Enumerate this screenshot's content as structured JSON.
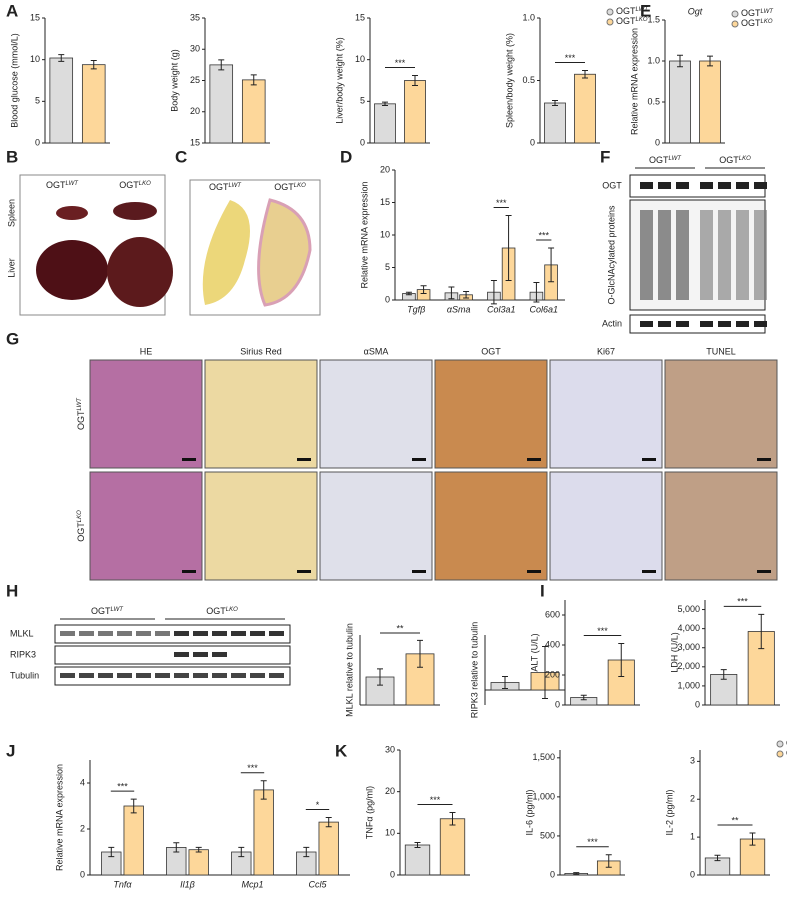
{
  "letters": [
    "A",
    "E",
    "B",
    "C",
    "D",
    "F",
    "G",
    "H",
    "I",
    "J",
    "K"
  ],
  "groups": [
    {
      "base": "OGT",
      "sup": "LWT",
      "color": "#dcdcdc"
    },
    {
      "base": "OGT",
      "sup": "LKO",
      "color": "#fdd79a"
    }
  ],
  "images": {
    "B": [
      "Spleen",
      "Liver"
    ],
    "F": [
      "OGT",
      "O-GlcNAcylated proteins",
      "Actin"
    ],
    "G": [
      "HE",
      "Sirius Red",
      "αSMA",
      "OGT",
      "Ki67",
      "TUNEL"
    ],
    "H": [
      "MLKL",
      "RIPK3",
      "Tubulin"
    ]
  },
  "charts": [
    {
      "ylabel": "Blood glucose (mmol/L)",
      "ylim": [
        0,
        15
      ],
      "yticks": [
        0,
        5,
        10,
        15
      ],
      "values": [
        10.2,
        9.4
      ],
      "errors": [
        0.4,
        0.5
      ]
    },
    {
      "ylabel": "Body weight (g)",
      "ylim": [
        15,
        35
      ],
      "yticks": [
        15,
        20,
        25,
        30,
        35
      ],
      "values": [
        27.5,
        25.1
      ],
      "errors": [
        0.8,
        0.8
      ]
    },
    {
      "ylabel": "Liver/body weight (%)",
      "ylim": [
        0,
        15
      ],
      "yticks": [
        0,
        5,
        10,
        15
      ],
      "values": [
        4.7,
        7.5
      ],
      "errors": [
        0.2,
        0.6
      ],
      "sig": "***"
    },
    {
      "ylabel": "Spleen/body weight (%)",
      "ylim": [
        0,
        1
      ],
      "yticks": [
        0,
        0.5,
        {
          "value": 1,
          "label": "1.0"
        }
      ],
      "values": [
        0.32,
        0.55
      ],
      "errors": [
        0.02,
        0.03
      ],
      "sig": "***",
      "legend": true
    },
    {
      "title": "Ogt",
      "ylabel": "Relative mRNA expression",
      "ylim": [
        0,
        1.5
      ],
      "yticks": [
        0,
        0.5,
        {
          "value": 1,
          "label": "1.0"
        },
        1.5
      ],
      "values": [
        1.0,
        1.0
      ],
      "errors": [
        0.07,
        0.06
      ],
      "legend": true
    },
    {
      "ylabel": "Relative mRNA expression",
      "ylim": [
        0,
        20
      ],
      "yticks": [
        0,
        5,
        10,
        15,
        20
      ],
      "categories": [
        "Tgfβ",
        "αSma",
        "Col3a1",
        "Col6a1"
      ],
      "series": [
        {
          "values": [
            1.0,
            1.1,
            1.2,
            1.2
          ],
          "errors": [
            0.2,
            0.9,
            1.8,
            1.5
          ]
        },
        {
          "values": [
            1.6,
            0.8,
            8.0,
            5.4
          ],
          "errors": [
            0.6,
            0.5,
            5.0,
            2.6
          ]
        }
      ],
      "sig": [
        null,
        null,
        "***",
        "***"
      ]
    },
    {
      "ylabel": "MLKL relative to tubulin",
      "ylim": [
        0,
        1.3
      ],
      "values": [
        0.52,
        0.95
      ],
      "errors": [
        0.15,
        0.25
      ],
      "sig": "**"
    },
    {
      "ylabel": "RIPK3 relative to tubulin",
      "ylim": [
        -0.3,
        1.1
      ],
      "values": [
        0.15,
        0.35
      ],
      "errors": [
        0.12,
        0.52
      ]
    },
    {
      "ylabel": "ALT (U/L)",
      "ylim": [
        0,
        700
      ],
      "yticks": [
        0,
        200,
        400,
        600
      ],
      "values": [
        50,
        300
      ],
      "errors": [
        15,
        110
      ],
      "sig": "***"
    },
    {
      "ylabel": "LDH (U/L)",
      "ylim": [
        0,
        5500
      ],
      "yticks": [
        0,
        {
          "value": 1000,
          "label": "1,000"
        },
        {
          "value": 2000,
          "label": "2,000"
        },
        {
          "value": 3000,
          "label": "3,000"
        },
        {
          "value": 4000,
          "label": "4,000"
        },
        {
          "value": 5000,
          "label": "5,000"
        }
      ],
      "values": [
        1600,
        3850
      ],
      "errors": [
        250,
        900
      ],
      "sig": "***"
    },
    {
      "ylabel": "Relative mRNA expression",
      "ylim": [
        0,
        5
      ],
      "yticks": [
        0,
        2,
        4
      ],
      "categories": [
        "Tnfα",
        "Il1β",
        "Mcp1",
        "Ccl5"
      ],
      "series": [
        {
          "values": [
            1.0,
            1.2,
            1.0,
            1.0
          ],
          "errors": [
            0.2,
            0.2,
            0.2,
            0.2
          ]
        },
        {
          "values": [
            3.0,
            1.1,
            3.7,
            2.3
          ],
          "errors": [
            0.3,
            0.1,
            0.4,
            0.2
          ]
        }
      ],
      "sig": [
        "***",
        null,
        "***",
        "*"
      ]
    },
    {
      "ylabel": "TNFα (pg/ml)",
      "ylim": [
        0,
        30
      ],
      "yticks": [
        0,
        10,
        20,
        30
      ],
      "values": [
        7.2,
        13.5
      ],
      "errors": [
        0.6,
        1.5
      ],
      "sig": "***"
    },
    {
      "ylabel": "IL-6 (pg/ml)",
      "ylim": [
        0,
        1600
      ],
      "yticks": [
        0,
        500,
        {
          "value": 1000,
          "label": "1,000"
        },
        {
          "value": 1500,
          "label": "1,500"
        }
      ],
      "values": [
        20,
        180
      ],
      "errors": [
        10,
        80
      ],
      "sig": "***"
    },
    {
      "ylabel": "IL-2 (pg/ml)",
      "ylim": [
        0,
        3.3
      ],
      "yticks": [
        0,
        1,
        2,
        3
      ],
      "values": [
        0.45,
        0.95
      ],
      "errors": [
        0.07,
        0.16
      ],
      "sig": "**",
      "legend": true
    }
  ]
}
